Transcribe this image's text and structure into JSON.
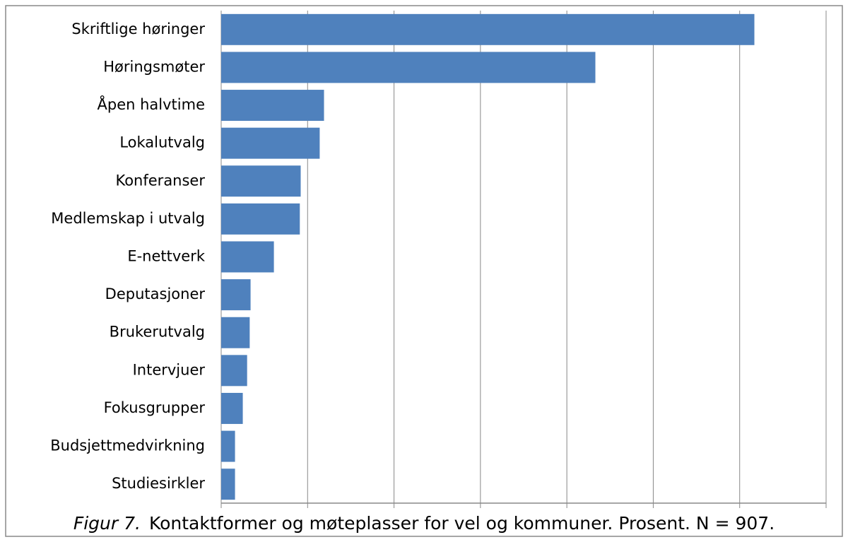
{
  "chart_data": {
    "type": "bar",
    "orientation": "horizontal",
    "categories": [
      "Skriftlige høringer",
      "Høringsmøter",
      "Åpen halvtime",
      "Lokalutvalg",
      "Konferanser",
      "Medlemskap i utvalg",
      "E-nettverk",
      "Deputasjoner",
      "Brukerutvalg",
      "Intervjuer",
      "Fokusgrupper",
      "Budsjettmedvirkning",
      "Studiesirkler"
    ],
    "values": [
      61.7,
      43.3,
      11.9,
      11.4,
      9.2,
      9.1,
      6.1,
      3.4,
      3.3,
      3.0,
      2.5,
      1.6,
      1.6
    ],
    "color": "#4f81bd",
    "xlim": [
      0,
      70
    ],
    "xticks": [
      0,
      10,
      20,
      30,
      40,
      50,
      60,
      70
    ],
    "grid": true,
    "caption_label": "Figur 7.",
    "caption": "Kontaktformer og møteplasser for vel og kommuner. Prosent. N = 907."
  }
}
